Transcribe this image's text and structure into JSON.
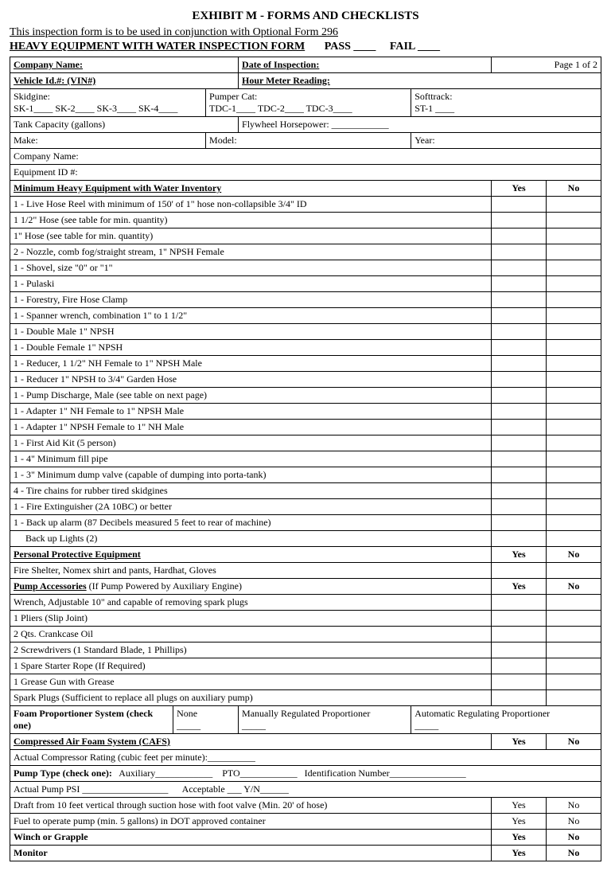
{
  "title": "EXHIBIT M - FORMS AND CHECKLISTS",
  "subtitle": "This inspection form is to be used in conjunction with Optional Form 296",
  "formName": "HEAVY EQUIPMENT WITH WATER INSPECTION FORM",
  "pass": "PASS ____",
  "fail": "FAIL  ____",
  "pageInfo": "Page 1 of 2",
  "labels": {
    "companyName": "Company Name:",
    "dateInspection": "Date of Inspection:",
    "vehicleId": "Vehicle Id.#: (VIN#)",
    "hourMeter": "Hour Meter Reading:",
    "skidgine": "Skidgine:",
    "skLine": "SK-1____     SK-2____     SK-3____     SK-4____",
    "pumperCat": "Pumper Cat:",
    "tdcLine": "TDC-1____        TDC-2____     TDC-3____",
    "softtrack": "Softtrack:",
    "st1": "ST-1 ____",
    "tankCapacity": "Tank Capacity (gallons)",
    "flywheel": "Flywheel Horsepower: ____________",
    "make": "Make:",
    "model": "Model:",
    "year": "Year:",
    "companyName2": "Company Name:",
    "equipId": "Equipment ID #:",
    "yes": "Yes",
    "no": "No"
  },
  "sections": {
    "inventory": "Minimum Heavy Equipment with Water Inventory",
    "ppe": "Personal Protective Equipment",
    "pumpAcc": "Pump Accessories",
    "pumpAccSuffix": " (If Pump Powered by Auxiliary Engine)",
    "foam": "Foam Proportioner System (check one)",
    "cafs": "Compressed Air Foam System (CAFS)",
    "winch": "Winch or Grapple",
    "monitor": "Monitor"
  },
  "inventoryItems": [
    "1 - Live Hose Reel with minimum of 150' of 1\" hose non-collapsible 3/4\" ID",
    "1 1/2\" Hose (see table for min. quantity)",
    "1\" Hose (see table for min. quantity)",
    "2 - Nozzle, comb fog/straight stream, 1\" NPSH Female",
    "1 - Shovel, size \"0\" or \"1\"",
    "1 - Pulaski",
    "1 - Forestry, Fire Hose Clamp",
    "1 - Spanner wrench, combination 1\" to 1 1/2\"",
    "1 - Double Male 1\" NPSH",
    "1 - Double Female 1\" NPSH",
    "1 - Reducer, 1 1/2\" NH Female to 1\" NPSH Male",
    "1 - Reducer 1\" NPSH to 3/4\" Garden Hose",
    "1 - Pump Discharge, Male (see table on next page)",
    "1 - Adapter 1\" NH Female to 1\" NPSH Male",
    "1 - Adapter 1\" NPSH Female to 1\" NH Male",
    "1 - First Aid Kit (5 person)",
    "1 - 4\" Minimum fill pipe",
    "1 - 3\" Minimum dump valve (capable of dumping into porta-tank)",
    "4 - Tire chains for rubber tired skidgines",
    "1 - Fire Extinguisher (2A 10BC) or better",
    "1 - Back up alarm (87 Decibels measured 5 feet to rear of machine)",
    "     Back up Lights (2)"
  ],
  "ppeItems": [
    "Fire Shelter, Nomex shirt and pants, Hardhat, Gloves"
  ],
  "pumpAccItems": [
    "Wrench, Adjustable 10\" and capable of removing spark plugs",
    "1 Pliers (Slip Joint)",
    "2 Qts. Crankcase Oil",
    "2 Screwdrivers (1 Standard Blade, 1 Phillips)",
    "1 Spare Starter Rope (If Required)",
    "1 Grease Gun with Grease",
    "Spark Plugs (Sufficient to replace all plugs on auxiliary pump)"
  ],
  "foamOptions": {
    "none": "None      _____",
    "manual": "Manually Regulated Proportioner       _____",
    "auto": "Automatic Regulating Proportioner           _____"
  },
  "cafsItems": {
    "compressor": "Actual Compressor Rating (cubic feet per minute):__________",
    "pumpType": "Pump Type (check one):   Auxiliary____________    PTO____________   Identification Number________________",
    "psi": "Actual Pump PSI __________________      Acceptable ___ Y/N______",
    "draft": "Draft from 10 feet vertical through suction hose with foot valve (Min. 20' of hose)",
    "fuel": "Fuel to operate pump (min. 5 gallons) in DOT approved container"
  },
  "pumpTypeBold": "Pump Type (check one):"
}
